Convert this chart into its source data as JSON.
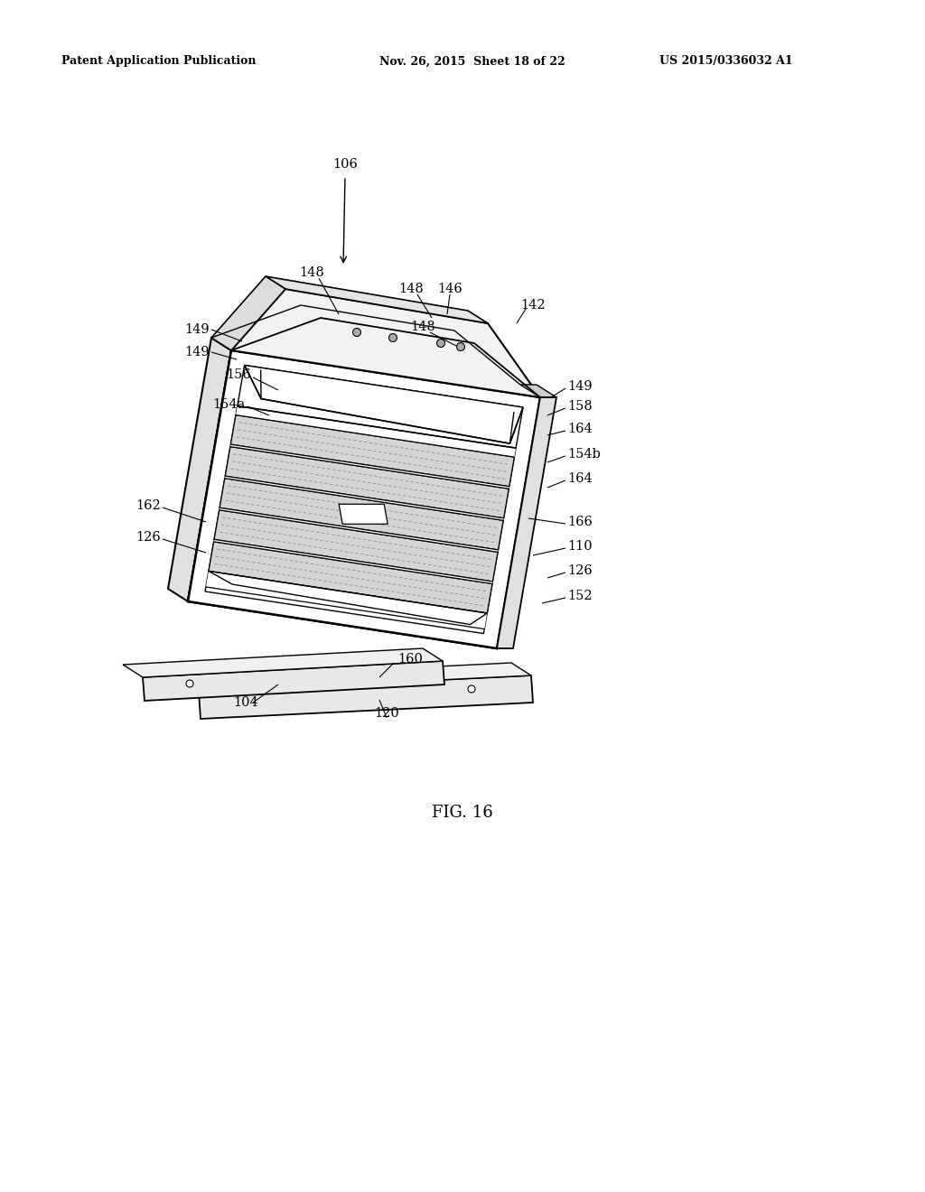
{
  "header_left": "Patent Application Publication",
  "header_mid": "Nov. 26, 2015  Sheet 18 of 22",
  "header_right": "US 2015/0336032 A1",
  "figure_label": "FIG. 16",
  "bg": "#ffffff",
  "lc": "#000000"
}
